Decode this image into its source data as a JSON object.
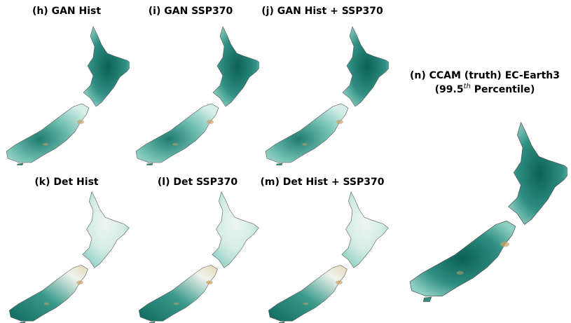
{
  "panels": [
    {
      "title": "(h) GAN Hist"
    },
    {
      "title": "(i) GAN SSP370"
    },
    {
      "title": "(j) GAN Hist + SSP370"
    },
    {
      "title": "(k) Det Hist"
    },
    {
      "title": "(l) Det SSP370"
    },
    {
      "title": "(m) Det Hist + SSP370"
    }
  ],
  "truth_panel": {
    "line1": "(n) CCAM (truth) EC-Earth3",
    "line2_start": "(99.5",
    "line2_sup": "th",
    "line2_end": " Percentile)"
  }
}
